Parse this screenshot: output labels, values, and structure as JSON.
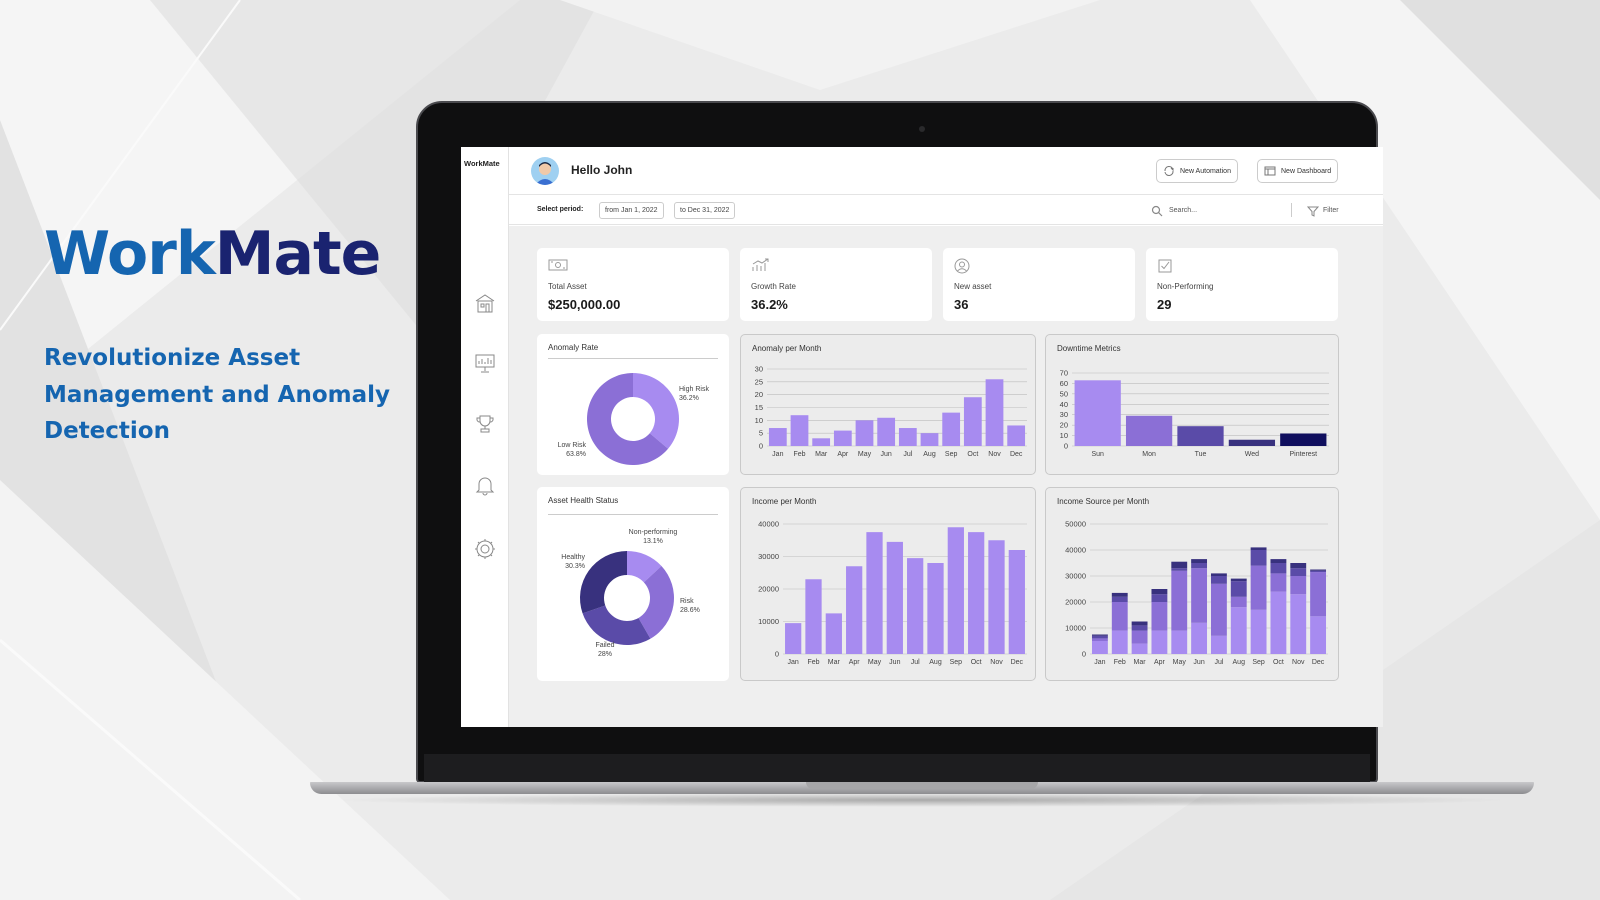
{
  "brand": {
    "part1": "Work",
    "part2": "Mate"
  },
  "tagline": "Revolutionize Asset Management and Anomaly Detection",
  "app": {
    "logo": "WorkMate",
    "greeting": "Hello John",
    "buttons": {
      "new_automation": "New Automation",
      "new_dashboard": "New Dashboard"
    },
    "period": {
      "label": "Select period:",
      "from": "from Jan 1, 2022",
      "to": "to Dec 31, 2022"
    },
    "search_placeholder": "Search...",
    "filter_label": "Filter",
    "sidebar_icons": [
      "building-icon",
      "presentation-icon",
      "trophy-icon",
      "bell-icon",
      "gear-icon"
    ]
  },
  "kpis": [
    {
      "label": "Total Asset",
      "value": "$250,000.00",
      "icon": "money-icon"
    },
    {
      "label": "Growth Rate",
      "value": "36.2%",
      "icon": "growth-chart-icon"
    },
    {
      "label": "New asset",
      "value": "36",
      "icon": "user-circle-icon"
    },
    {
      "label": "Non-Performing",
      "value": "29",
      "icon": "checkbox-icon"
    }
  ],
  "colors": {
    "light": "#a78bf0",
    "mid": "#8b6fd6",
    "dark": "#5a4ba8",
    "navy": "#38317e",
    "deep": "#100f5e",
    "brand_blue": "#1565b0",
    "brand_navy": "#1a2370"
  },
  "chart_data": [
    {
      "type": "pie",
      "title": "Anomaly Rate",
      "donut": true,
      "slices": [
        {
          "label": "High Risk",
          "value": 36.2,
          "display": "36.2%"
        },
        {
          "label": "Low Risk",
          "value": 63.8,
          "display": "63.8%"
        }
      ]
    },
    {
      "type": "bar",
      "title": "Anomaly per Month",
      "categories": [
        "Jan",
        "Feb",
        "Mar",
        "Apr",
        "May",
        "Jun",
        "Jul",
        "Aug",
        "Sep",
        "Oct",
        "Nov",
        "Dec"
      ],
      "values": [
        7,
        12,
        3,
        6,
        10,
        11,
        7,
        5,
        13,
        19,
        26,
        8
      ],
      "ylim": [
        0,
        30
      ],
      "yticks": [
        0,
        5,
        10,
        15,
        20,
        25,
        30
      ]
    },
    {
      "type": "bar",
      "title": "Downtime Metrics",
      "categories": [
        "Sun",
        "Mon",
        "Tue",
        "Wed",
        "Pinterest"
      ],
      "values": [
        63,
        29,
        19,
        6,
        12
      ],
      "ylim": [
        0,
        70
      ],
      "yticks": [
        0,
        10,
        20,
        30,
        40,
        50,
        60,
        70
      ]
    },
    {
      "type": "pie",
      "title": "Asset Health Status",
      "donut": true,
      "slices": [
        {
          "label": "Non-performing",
          "value": 13.1,
          "display": "13.1%"
        },
        {
          "label": "Risk",
          "value": 28.6,
          "display": "28.6%"
        },
        {
          "label": "Failed",
          "value": 28,
          "display": "28%"
        },
        {
          "label": "Healthy",
          "value": 30.3,
          "display": "30.3%"
        }
      ]
    },
    {
      "type": "bar",
      "title": "Income per Month",
      "categories": [
        "Jan",
        "Feb",
        "Mar",
        "Apr",
        "May",
        "Jun",
        "Jul",
        "Aug",
        "Sep",
        "Oct",
        "Nov",
        "Dec"
      ],
      "values": [
        9500,
        23000,
        12500,
        27000,
        37500,
        34500,
        29500,
        28000,
        39000,
        37500,
        35000,
        32000
      ],
      "ylim": [
        0,
        40000
      ],
      "yticks": [
        0,
        10000,
        20000,
        30000,
        40000
      ]
    },
    {
      "type": "bar",
      "stacked": true,
      "title": "Income Source per Month",
      "categories": [
        "Jan",
        "Feb",
        "Mar",
        "Apr",
        "May",
        "Jun",
        "Jul",
        "Aug",
        "Sep",
        "Oct",
        "Nov",
        "Dec"
      ],
      "series": [
        {
          "values": [
            5000,
            9000,
            4000,
            9000,
            9000,
            12000,
            7000,
            18000,
            17000,
            24000,
            23000,
            14500
          ]
        },
        {
          "values": [
            1000,
            11000,
            5000,
            11000,
            23000,
            21000,
            20000,
            4000,
            17000,
            7000,
            7000,
            17000
          ]
        },
        {
          "values": [
            1000,
            2000,
            2000,
            3000,
            1000,
            2000,
            3000,
            6000,
            6000,
            4000,
            3000,
            500
          ]
        },
        {
          "values": [
            500,
            1500,
            1500,
            2000,
            2500,
            1500,
            1000,
            1000,
            1000,
            1500,
            2000,
            500
          ]
        }
      ],
      "ylim": [
        0,
        50000
      ],
      "yticks": [
        0,
        10000,
        20000,
        30000,
        40000,
        50000
      ]
    }
  ]
}
